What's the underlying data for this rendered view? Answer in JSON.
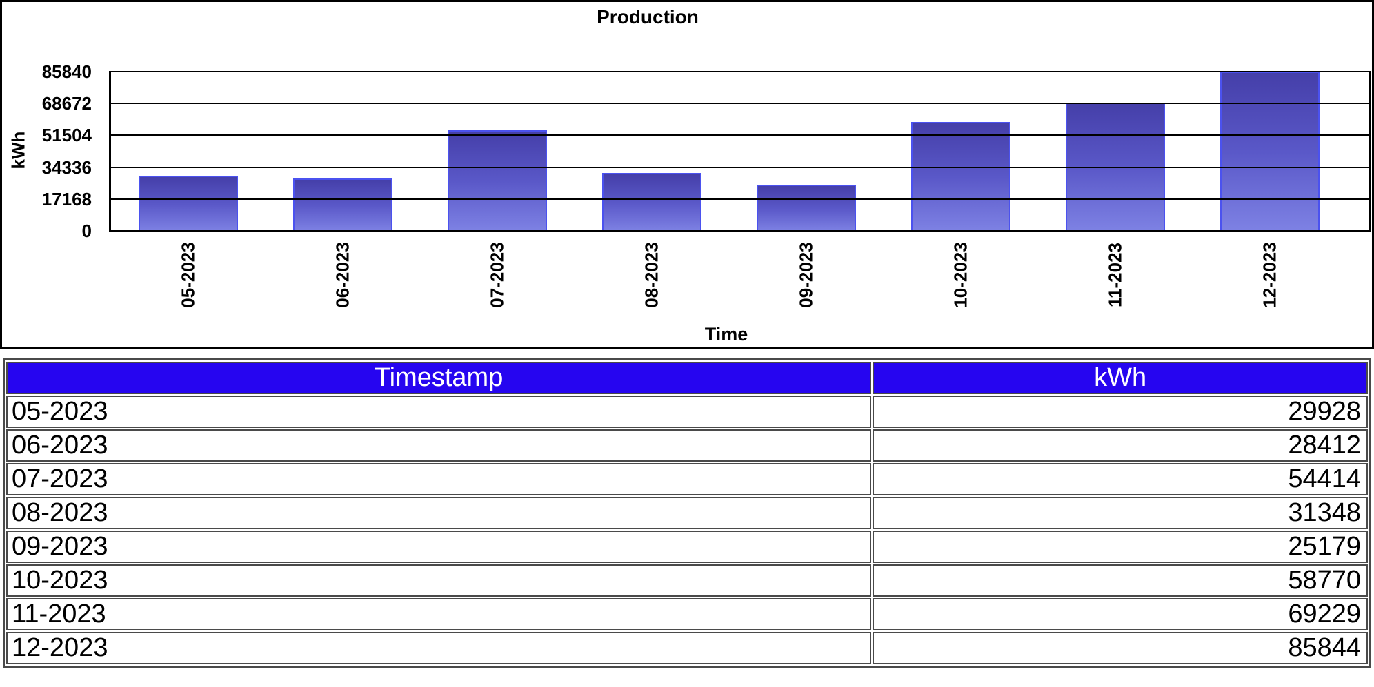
{
  "chart_data": {
    "type": "bar",
    "title": "Production",
    "xlabel": "Time",
    "ylabel": "kWh",
    "categories": [
      "05-2023",
      "06-2023",
      "07-2023",
      "08-2023",
      "09-2023",
      "10-2023",
      "11-2023",
      "12-2023"
    ],
    "values": [
      29928,
      28412,
      54414,
      31348,
      25179,
      58770,
      69229,
      85844
    ],
    "ylim": [
      0,
      85840
    ],
    "y_ticks": [
      0,
      17168,
      34336,
      51504,
      68672,
      85840
    ],
    "grid": "horizontal-black-lines-over-bars",
    "legend": "none",
    "bar_gradient_top": "#453fa9",
    "bar_gradient_bottom": "#7e82e4",
    "bar_border_color": "#4b52ef"
  },
  "table": {
    "headers": [
      "Timestamp",
      "kWh"
    ],
    "rows": [
      [
        "05-2023",
        "29928"
      ],
      [
        "06-2023",
        "28412"
      ],
      [
        "07-2023",
        "54414"
      ],
      [
        "08-2023",
        "31348"
      ],
      [
        "09-2023",
        "25179"
      ],
      [
        "10-2023",
        "58770"
      ],
      [
        "11-2023",
        "69229"
      ],
      [
        "12-2023",
        "85844"
      ]
    ],
    "header_bg_color": "#2605f0",
    "header_text_color": "#ffffff"
  }
}
